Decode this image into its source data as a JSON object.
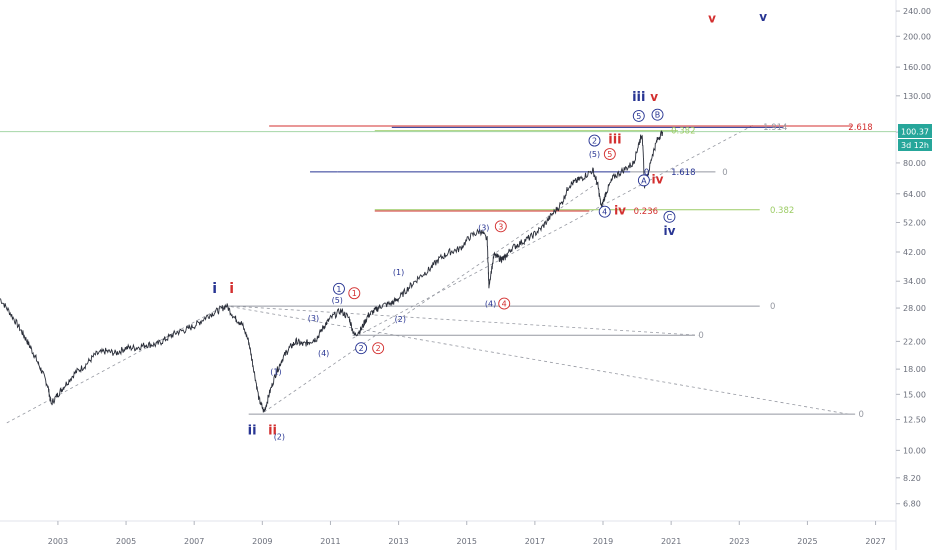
{
  "chart_data": {
    "type": "line",
    "y_scale": "log",
    "ylim": [
      6.0,
      260.0
    ],
    "xlim": [
      2001.3,
      2027.6
    ],
    "y_ticks": [
      "6.80",
      "8.20",
      "10.00",
      "12.50",
      "15.00",
      "18.00",
      "22.00",
      "28.00",
      "34.00",
      "42.00",
      "52.00",
      "64.00",
      "80.00",
      "100.00",
      "130.00",
      "160.00",
      "200.00",
      "240.00"
    ],
    "x_ticks": [
      "2003",
      "2005",
      "2007",
      "2009",
      "2011",
      "2013",
      "2015",
      "2017",
      "2019",
      "2021",
      "2023",
      "2025",
      "2027"
    ],
    "grid": false,
    "last_price": "100.37",
    "timeframe": "3d 12h",
    "colors": {
      "price": "#2a2e39",
      "blue": "#283593",
      "red": "#d32f2f",
      "green": "#9ccc65",
      "gray": "#9598a1",
      "price_label_bg": "#26a69a"
    },
    "series": [
      {
        "values_x": [
          2001.3,
          2001.6,
          2001.9,
          2002.1,
          2002.3,
          2002.5,
          2002.7,
          2002.8,
          2003.0,
          2003.2,
          2003.5,
          2003.8,
          2004.1,
          2004.4,
          2004.7,
          2005.0,
          2005.3,
          2005.6,
          2005.9,
          2006.2,
          2006.5,
          2006.8,
          2007.1,
          2007.4,
          2007.7,
          2007.95,
          2008.2,
          2008.4,
          2008.6,
          2008.75,
          2008.9,
          2009.05,
          2009.2,
          2009.4,
          2009.6,
          2009.8,
          2010.0,
          2010.2,
          2010.4,
          2010.6,
          2010.8,
          2011.0,
          2011.3,
          2011.55,
          2011.7,
          2011.9,
          2012.1,
          2012.3,
          2012.5,
          2012.8,
          2013.0,
          2013.3,
          2013.6,
          2013.9,
          2014.2,
          2014.5,
          2014.8,
          2015.1,
          2015.4,
          2015.6,
          2015.65,
          2015.8,
          2016.0,
          2016.1,
          2016.3,
          2016.6,
          2016.9,
          2017.2,
          2017.5,
          2017.8,
          2018.0,
          2018.2,
          2018.4,
          2018.7,
          2018.85,
          2018.95,
          2019.1,
          2019.3,
          2019.6,
          2019.9,
          2020.05,
          2020.15,
          2020.22,
          2020.3,
          2020.45,
          2020.6,
          2020.75
        ],
        "values_y": [
          30,
          27,
          24,
          22,
          20,
          18,
          16,
          14,
          15,
          16,
          17.5,
          18.5,
          20,
          20.5,
          20.2,
          21,
          21,
          21.5,
          21.5,
          22.5,
          23.5,
          24,
          25,
          26.5,
          27.5,
          28.5,
          26,
          25,
          22,
          18,
          14.5,
          13.2,
          15,
          17.5,
          19.5,
          21,
          22,
          21.5,
          22,
          22.5,
          24.5,
          26,
          27.5,
          26,
          23,
          24,
          26.5,
          27.5,
          28.5,
          29,
          30,
          32.5,
          35,
          37,
          40,
          42,
          43,
          47,
          49,
          46,
          33,
          41,
          40,
          40,
          43,
          45,
          47,
          50,
          55,
          60,
          68,
          70,
          72,
          76,
          68,
          58,
          65,
          72,
          76,
          80,
          92,
          99,
          68,
          72,
          85,
          95,
          100.37
        ]
      }
    ],
    "lines": [
      {
        "x1": 2001.5,
        "y1": 12.2,
        "x2": 2007.9,
        "y2": 28.5,
        "style": "dash",
        "color": "#9598a1"
      },
      {
        "x1": 2007.9,
        "y1": 28.5,
        "x2": 2026.2,
        "y2": 13.0,
        "style": "dash",
        "color": "#9598a1"
      },
      {
        "x1": 2007.9,
        "y1": 28.5,
        "x2": 2021.8,
        "y2": 23.0,
        "style": "dash",
        "color": "#9598a1"
      },
      {
        "x1": 2009.05,
        "y1": 13.2,
        "x2": 2018.9,
        "y2": 70,
        "style": "dash",
        "color": "#9598a1"
      },
      {
        "x1": 2011.65,
        "y1": 22.5,
        "x2": 2023.4,
        "y2": 105,
        "style": "dash",
        "color": "#9598a1"
      },
      {
        "x1": 2008.6,
        "y1": 13.0,
        "x2": 2026.4,
        "y2": 13.0,
        "style": "solid",
        "color": "#9598a1"
      },
      {
        "x1": 2007.9,
        "y1": 28.4,
        "x2": 2023.6,
        "y2": 28.4,
        "style": "solid",
        "color": "#9598a1"
      },
      {
        "x1": 2011.65,
        "y1": 23.0,
        "x2": 2021.7,
        "y2": 23.0,
        "style": "solid",
        "color": "#9598a1"
      },
      {
        "x1": 2019.8,
        "y1": 75,
        "x2": 2022.3,
        "y2": 75,
        "style": "solid",
        "color": "#9598a1"
      },
      {
        "x1": 2012.3,
        "y1": 57,
        "x2": 2023.6,
        "y2": 57,
        "style": "solid",
        "color": "#9ccc65"
      },
      {
        "x1": 2012.3,
        "y1": 56.5,
        "x2": 2018.6,
        "y2": 56.5,
        "style": "solid",
        "color": "#d32f2f"
      },
      {
        "x1": 2012.3,
        "y1": 101,
        "x2": 2021.2,
        "y2": 101,
        "style": "solid",
        "color": "#9ccc65"
      },
      {
        "x1": 2009.2,
        "y1": 104.5,
        "x2": 2026.3,
        "y2": 104.5,
        "style": "solid",
        "color": "#d32f2f"
      },
      {
        "x1": 2012.8,
        "y1": 103.5,
        "x2": 2024.3,
        "y2": 103.5,
        "style": "solid",
        "color": "#283593"
      },
      {
        "x1": 2011.2,
        "y1": 75,
        "x2": 2019.8,
        "y2": 75,
        "style": "solid",
        "color": "#283593"
      },
      {
        "x1": 2010.4,
        "y1": 75,
        "x2": 2011.2,
        "y2": 75,
        "style": "solid",
        "color": "#283593"
      },
      {
        "x1": 2001.3,
        "y1": 100.37,
        "x2": 2027.6,
        "y2": 100.37,
        "style": "solid",
        "color": "#a5d6a7"
      }
    ],
    "annotations": [
      {
        "text": "i",
        "x": 2007.6,
        "y": 31.2,
        "color": "#283593",
        "bold": true,
        "size": 14,
        "circle": false
      },
      {
        "text": "i",
        "x": 2008.1,
        "y": 31.2,
        "color": "#d32f2f",
        "bold": true,
        "size": 14,
        "circle": false
      },
      {
        "text": "ii",
        "x": 2008.7,
        "y": 11.2,
        "color": "#283593",
        "bold": true,
        "size": 13,
        "circle": false
      },
      {
        "text": "ii",
        "x": 2009.3,
        "y": 11.2,
        "color": "#d32f2f",
        "bold": true,
        "size": 13,
        "circle": false
      },
      {
        "text": "(2)",
        "x": 2009.5,
        "y": 10.8,
        "color": "#283593",
        "bold": false,
        "size": 8,
        "circle": false
      },
      {
        "text": "(1)",
        "x": 2009.4,
        "y": 17.3,
        "color": "#283593",
        "bold": false,
        "size": 8,
        "circle": false
      },
      {
        "text": "(3)",
        "x": 2010.5,
        "y": 25.5,
        "color": "#283593",
        "bold": false,
        "size": 8,
        "circle": false
      },
      {
        "text": "(4)",
        "x": 2010.8,
        "y": 19.8,
        "color": "#283593",
        "bold": false,
        "size": 8,
        "circle": false
      },
      {
        "text": "1",
        "x": 2011.25,
        "y": 31.5,
        "color": "#283593",
        "bold": false,
        "size": 8,
        "circle": true
      },
      {
        "text": "1",
        "x": 2011.7,
        "y": 30.5,
        "color": "#d32f2f",
        "bold": false,
        "size": 8,
        "circle": true
      },
      {
        "text": "(5)",
        "x": 2011.2,
        "y": 29.0,
        "color": "#283593",
        "bold": false,
        "size": 8,
        "circle": false
      },
      {
        "text": "(1)",
        "x": 2013.0,
        "y": 35.5,
        "color": "#283593",
        "bold": false,
        "size": 8,
        "circle": false
      },
      {
        "text": "(2)",
        "x": 2013.05,
        "y": 25.3,
        "color": "#283593",
        "bold": false,
        "size": 8,
        "circle": false
      },
      {
        "text": "2",
        "x": 2011.9,
        "y": 20.5,
        "color": "#283593",
        "bold": false,
        "size": 8,
        "circle": true
      },
      {
        "text": "2",
        "x": 2012.4,
        "y": 20.5,
        "color": "#d32f2f",
        "bold": false,
        "size": 8,
        "circle": true
      },
      {
        "text": "(3)",
        "x": 2015.5,
        "y": 49.0,
        "color": "#283593",
        "bold": false,
        "size": 8,
        "circle": false
      },
      {
        "text": "3",
        "x": 2016.0,
        "y": 49.5,
        "color": "#d32f2f",
        "bold": false,
        "size": 8,
        "circle": true
      },
      {
        "text": "(4)",
        "x": 2015.7,
        "y": 28.3,
        "color": "#283593",
        "bold": false,
        "size": 8,
        "circle": false
      },
      {
        "text": "4",
        "x": 2016.1,
        "y": 28.3,
        "color": "#d32f2f",
        "bold": false,
        "size": 8,
        "circle": true
      },
      {
        "text": "2",
        "x": 2018.75,
        "y": 92.0,
        "color": "#283593",
        "bold": false,
        "size": 8,
        "circle": true
      },
      {
        "text": "iii",
        "x": 2019.35,
        "y": 92.0,
        "color": "#d32f2f",
        "bold": true,
        "size": 13,
        "circle": false
      },
      {
        "text": "(5)",
        "x": 2018.75,
        "y": 83.5,
        "color": "#283593",
        "bold": false,
        "size": 8,
        "circle": false
      },
      {
        "text": "5",
        "x": 2019.2,
        "y": 83.5,
        "color": "#d32f2f",
        "bold": false,
        "size": 8,
        "circle": true
      },
      {
        "text": "4",
        "x": 2019.05,
        "y": 55.0,
        "color": "#283593",
        "bold": false,
        "size": 8,
        "circle": true
      },
      {
        "text": "iv",
        "x": 2019.5,
        "y": 55.0,
        "color": "#d32f2f",
        "bold": true,
        "size": 12,
        "circle": false
      },
      {
        "text": "5",
        "x": 2020.05,
        "y": 110.0,
        "color": "#283593",
        "bold": false,
        "size": 8,
        "circle": true
      },
      {
        "text": "iii",
        "x": 2020.05,
        "y": 125.0,
        "color": "#283593",
        "bold": true,
        "size": 13,
        "circle": false
      },
      {
        "text": "v",
        "x": 2020.5,
        "y": 125.0,
        "color": "#d32f2f",
        "bold": true,
        "size": 12,
        "circle": false
      },
      {
        "text": "B",
        "x": 2020.6,
        "y": 111.0,
        "color": "#283593",
        "bold": false,
        "size": 8,
        "circle": true
      },
      {
        "text": "A",
        "x": 2020.2,
        "y": 69.0,
        "color": "#283593",
        "bold": false,
        "size": 8,
        "circle": true
      },
      {
        "text": "iv",
        "x": 2020.6,
        "y": 69.0,
        "color": "#d32f2f",
        "bold": true,
        "size": 12,
        "circle": false
      },
      {
        "text": "C",
        "x": 2020.95,
        "y": 53.0,
        "color": "#283593",
        "bold": false,
        "size": 8,
        "circle": true
      },
      {
        "text": "iv",
        "x": 2020.95,
        "y": 47.5,
        "color": "#283593",
        "bold": true,
        "size": 12,
        "circle": false
      },
      {
        "text": "v",
        "x": 2022.2,
        "y": 221.0,
        "color": "#d32f2f",
        "bold": true,
        "size": 12,
        "circle": false
      },
      {
        "text": "v",
        "x": 2023.7,
        "y": 223.0,
        "color": "#283593",
        "bold": true,
        "size": 12,
        "circle": false
      }
    ],
    "level_labels": [
      {
        "text": "0",
        "x": 2026.5,
        "y": 13.0,
        "color": "#9598a1"
      },
      {
        "text": "0",
        "x": 2023.9,
        "y": 28.4,
        "color": "#9598a1"
      },
      {
        "text": "0",
        "x": 2021.8,
        "y": 23.0,
        "color": "#9598a1"
      },
      {
        "text": "0",
        "x": 2022.5,
        "y": 75,
        "color": "#9598a1"
      },
      {
        "text": "1.618",
        "x": 2021.0,
        "y": 75,
        "color": "#283593"
      },
      {
        "text": "0",
        "x": 2020.2,
        "y": 75,
        "color": "#283593"
      },
      {
        "text": "0.382",
        "x": 2023.9,
        "y": 57,
        "color": "#9ccc65"
      },
      {
        "text": "0.236",
        "x": 2019.9,
        "y": 56.5,
        "color": "#d32f2f"
      },
      {
        "text": "0.382",
        "x": 2021.0,
        "y": 101,
        "color": "#9ccc65"
      },
      {
        "text": "1.914",
        "x": 2023.7,
        "y": 103.8,
        "color": "#9598a1"
      },
      {
        "text": "2.618",
        "x": 2026.2,
        "y": 103.8,
        "color": "#d32f2f"
      }
    ]
  }
}
